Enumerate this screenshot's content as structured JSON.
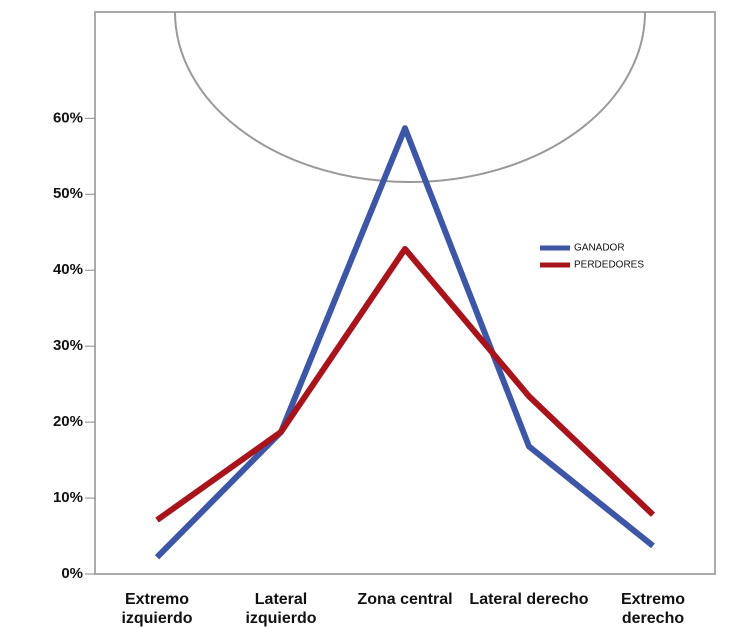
{
  "chart_data": {
    "type": "line",
    "categories": [
      "Extremo izquierdo",
      "Lateral izquierdo",
      "Zona central",
      "Lateral derecho",
      "Extremo derecho"
    ],
    "series": [
      {
        "name": "GANADOR",
        "color": "#3d56a6",
        "values": [
          2.2,
          18.7,
          58.7,
          16.8,
          3.7
        ]
      },
      {
        "name": "PERDEDORES",
        "color": "#a8141c",
        "values": [
          7.1,
          18.7,
          42.8,
          23.4,
          7.8
        ]
      }
    ],
    "ylim": [
      0,
      74
    ],
    "yticks": [
      {
        "value": 0,
        "label": "0%"
      },
      {
        "value": 10,
        "label": "10%"
      },
      {
        "value": 20,
        "label": "20%"
      },
      {
        "value": 30,
        "label": "30%"
      },
      {
        "value": 40,
        "label": "40%"
      },
      {
        "value": 50,
        "label": "50%"
      },
      {
        "value": 60,
        "label": "60%"
      }
    ],
    "legend": "upper-right"
  }
}
